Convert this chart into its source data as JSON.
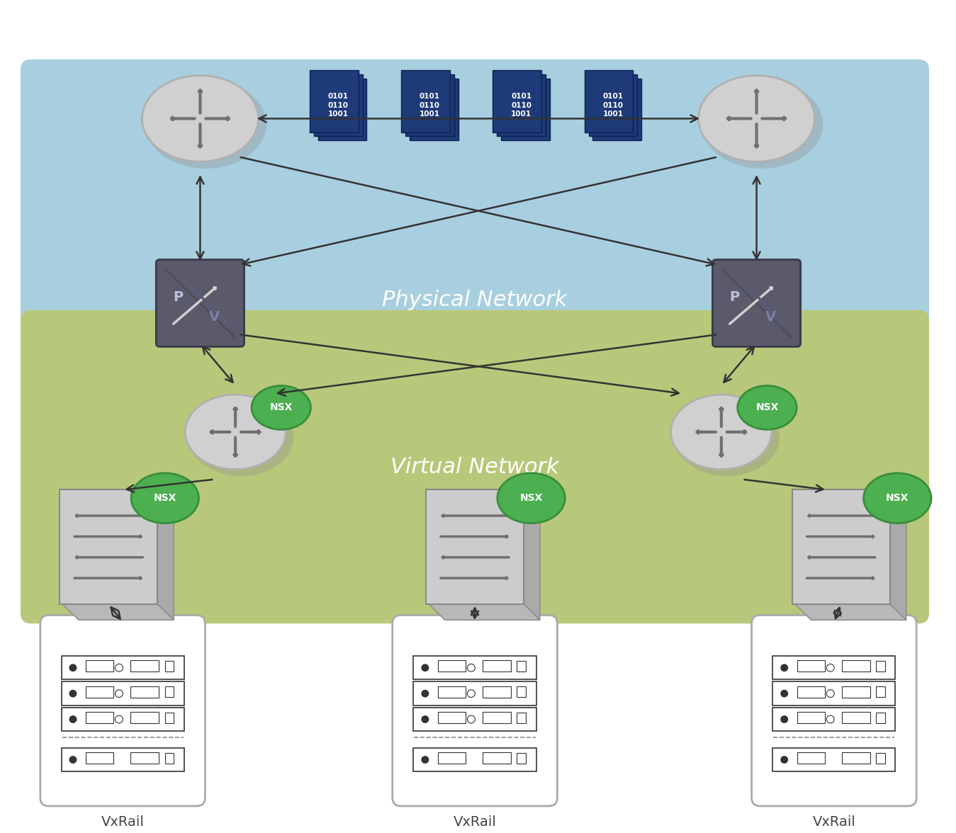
{
  "fig_width": 13.49,
  "fig_height": 11.76,
  "dpi": 100,
  "bg_color": "#ffffff",
  "physical_network_color": "#a8cfe0",
  "virtual_network_color": "#b8c87a",
  "physical_network_label": "Physical Network",
  "virtual_network_label": "Virtual Network",
  "router_fill": "#d0d0d0",
  "router_edge": "#b0b0b0",
  "router_arrow_color": "#707070",
  "pv_fill": "#5a5a6a",
  "pv_edge": "#3a3a4a",
  "pv_arrow_white": "#e0e0e0",
  "pv_arrow_blue": "#8080cc",
  "nsx_fill": "#4caf50",
  "nsx_edge": "#388e3c",
  "nsx_text": "NSX",
  "packet_fill": "#1e3a78",
  "packet_edge": "#0d2050",
  "packet_text": "0101\n0110\n1001",
  "vswitch_fill": "#cccccc",
  "vswitch_side": "#aaaaaa",
  "vswitch_arrow": "#707070",
  "vxrail_label": "VxRail",
  "arrow_color": "#333333",
  "label_color": "#ffffff",
  "vxrail_text_color": "#444444"
}
